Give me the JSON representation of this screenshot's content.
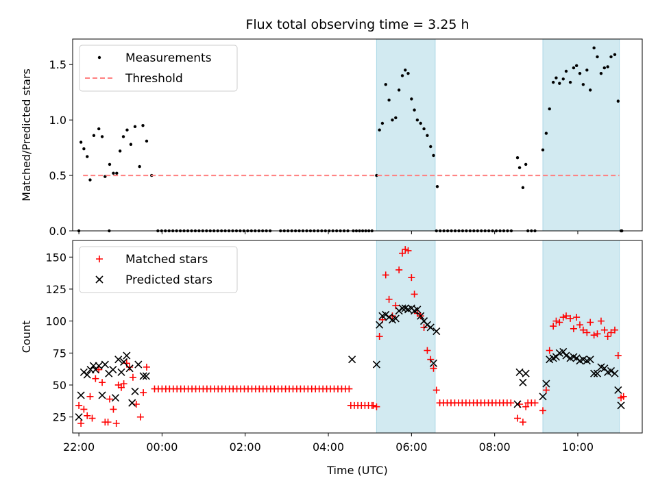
{
  "chart_data": [
    {
      "type": "scatter",
      "title": "Flux total observing time = 3.25 h",
      "ylabel": "Matched/Predicted stars",
      "xlabel": "",
      "xlim": [
        -2.15,
        11.55
      ],
      "ylim": [
        0,
        1.73
      ],
      "x_ticks": [
        "22:00",
        "00:00",
        "02:00",
        "04:00",
        "06:00",
        "08:00",
        "10:00"
      ],
      "y_ticks": [
        "0.0",
        "0.5",
        "1.0",
        "1.5"
      ],
      "legend": "top-left",
      "grid": false,
      "shaded_regions": [
        [
          5.16,
          6.57
        ],
        [
          9.16,
          11.0
        ]
      ],
      "series": [
        {
          "name": "Measurements",
          "style": "dot",
          "color": "#000000",
          "x": [
            -1.95,
            -1.88,
            -1.8,
            -1.73,
            -1.64,
            -1.52,
            -1.44,
            -1.37,
            -1.26,
            -1.17,
            -1.09,
            -1.01,
            -0.93,
            -0.84,
            -0.75,
            -0.65,
            -0.54,
            -0.46,
            -0.37,
            -0.25,
            5.16,
            5.23,
            5.3,
            5.38,
            5.46,
            5.54,
            5.62,
            5.7,
            5.78,
            5.85,
            5.92,
            6.0,
            6.07,
            6.14,
            6.22,
            6.3,
            6.38,
            6.46,
            6.53,
            6.62,
            8.55,
            8.6,
            8.68,
            8.75,
            9.16,
            9.24,
            9.32,
            9.41,
            9.48,
            9.56,
            9.65,
            9.72,
            9.82,
            9.9,
            9.97,
            10.05,
            10.13,
            10.22,
            10.3,
            10.39,
            10.47,
            10.56,
            10.64,
            10.72,
            10.8,
            10.89,
            10.97,
            11.04
          ],
          "y": [
            0.8,
            0.74,
            0.67,
            0.46,
            0.86,
            0.92,
            0.85,
            0.49,
            0.6,
            0.52,
            0.52,
            0.72,
            0.85,
            0.91,
            0.78,
            0.94,
            0.58,
            0.95,
            0.81,
            0.5,
            0.5,
            0.91,
            0.97,
            1.32,
            1.18,
            1.0,
            1.02,
            1.27,
            1.4,
            1.45,
            1.42,
            1.19,
            1.09,
            1.0,
            0.97,
            0.92,
            0.86,
            0.76,
            0.68,
            0.4,
            0.66,
            0.57,
            0.39,
            0.6,
            0.73,
            0.88,
            1.1,
            1.34,
            1.38,
            1.33,
            1.37,
            1.44,
            1.34,
            1.47,
            1.49,
            1.42,
            1.32,
            1.45,
            1.27,
            1.65,
            1.57,
            1.42,
            1.47,
            1.48,
            1.57,
            1.59,
            1.17,
            0.0
          ],
          "zero_points": {
            "ranges": [
              [
                -0.1,
                2.6,
                0.09
              ],
              [
                2.85,
                4.5,
                0.09
              ],
              [
                4.6,
                5.1,
                0.075
              ],
              [
                6.6,
                8.45,
                0.09
              ],
              [
                8.8,
                9.05,
                0.085
              ]
            ],
            "extra": [
              -2.0,
              -1.27,
              11.06
            ]
          }
        },
        {
          "name": "Threshold",
          "style": "dashed-line",
          "color": "#ff7f7f",
          "x": [
            -1.9,
            11.0
          ],
          "y": [
            0.5,
            0.5
          ]
        }
      ]
    },
    {
      "type": "scatter",
      "title": "",
      "ylabel": "Count",
      "xlabel": "Time (UTC)",
      "xlim": [
        -2.15,
        11.55
      ],
      "ylim": [
        12.5,
        163
      ],
      "x_ticks": [
        "22:00",
        "00:00",
        "02:00",
        "04:00",
        "06:00",
        "08:00",
        "10:00"
      ],
      "y_ticks": [
        "25",
        "50",
        "75",
        "100",
        "125",
        "150"
      ],
      "legend": "top-left",
      "grid": false,
      "shaded_regions": [
        [
          5.16,
          6.57
        ],
        [
          9.16,
          11.0
        ]
      ],
      "series": [
        {
          "name": "Matched stars",
          "style": "plus",
          "color": "#ff0000",
          "x": [
            -2.0,
            -1.95,
            -1.88,
            -1.8,
            -1.73,
            -1.68,
            -1.6,
            -1.52,
            -1.44,
            -1.37,
            -1.3,
            -1.26,
            -1.17,
            -1.1,
            -1.05,
            -0.98,
            -0.92,
            -0.85,
            -0.78,
            -0.7,
            -0.62,
            -0.52,
            -0.45,
            -0.37,
            5.08,
            5.16,
            5.23,
            5.3,
            5.38,
            5.46,
            5.54,
            5.62,
            5.7,
            5.78,
            5.85,
            5.92,
            6.0,
            6.07,
            6.14,
            6.22,
            6.3,
            6.38,
            6.46,
            6.53,
            6.6,
            8.55,
            8.6,
            8.68,
            8.75,
            9.16,
            9.24,
            9.32,
            9.41,
            9.48,
            9.56,
            9.65,
            9.72,
            9.82,
            9.9,
            9.97,
            10.05,
            10.13,
            10.22,
            10.3,
            10.39,
            10.47,
            10.56,
            10.64,
            10.72,
            10.8,
            10.89,
            10.97,
            11.04,
            11.1
          ],
          "y": [
            34,
            20,
            31,
            26,
            41,
            24,
            55,
            62,
            52,
            21,
            21,
            39,
            31,
            20,
            50,
            48,
            51,
            67,
            64,
            56,
            35,
            25,
            44,
            64,
            34,
            33,
            88,
            101,
            136,
            117,
            104,
            112,
            140,
            153,
            156,
            155,
            134,
            121,
            106,
            104,
            95,
            77,
            70,
            63,
            46,
            24,
            35,
            21,
            33,
            30,
            46,
            77,
            96,
            100,
            99,
            103,
            104,
            102,
            94,
            103,
            97,
            93,
            91,
            99,
            89,
            90,
            100,
            93,
            88,
            91,
            93,
            73,
            40,
            41
          ],
          "constant_runs": [
            {
              "x_range": [
                -0.18,
                4.52,
                0.09
              ],
              "y": 47
            },
            {
              "x_range": [
                4.54,
                5.12,
                0.085
              ],
              "y": 34
            },
            {
              "x_range": [
                6.68,
                8.45,
                0.09
              ],
              "y": 36
            },
            {
              "x_range": [
                8.8,
                9.05,
                0.085
              ],
              "y": 36
            }
          ]
        },
        {
          "name": "Predicted stars",
          "style": "x",
          "color": "#000000",
          "x": [
            -2.0,
            -1.95,
            -1.88,
            -1.8,
            -1.72,
            -1.65,
            -1.6,
            -1.52,
            -1.44,
            -1.37,
            -1.28,
            -1.18,
            -1.12,
            -1.05,
            -0.98,
            -0.92,
            -0.85,
            -0.78,
            -0.72,
            -0.65,
            -0.57,
            -0.45,
            -0.38,
            4.57,
            5.16,
            5.23,
            5.3,
            5.38,
            5.46,
            5.54,
            5.62,
            5.7,
            5.78,
            5.85,
            5.92,
            6.0,
            6.07,
            6.14,
            6.22,
            6.3,
            6.38,
            6.46,
            6.53,
            6.6,
            8.55,
            8.6,
            8.68,
            8.75,
            9.16,
            9.24,
            9.32,
            9.41,
            9.48,
            9.56,
            9.65,
            9.72,
            9.82,
            9.9,
            9.97,
            10.05,
            10.13,
            10.22,
            10.3,
            10.39,
            10.47,
            10.56,
            10.64,
            10.72,
            10.8,
            10.89,
            10.97,
            11.04
          ],
          "y": [
            25,
            42,
            60,
            58,
            62,
            65,
            62,
            65,
            42,
            66,
            59,
            62,
            40,
            70,
            60,
            68,
            73,
            63,
            36,
            45,
            66,
            57,
            57,
            70,
            66,
            97,
            104,
            105,
            103,
            101,
            102,
            108,
            110,
            110,
            109,
            110,
            108,
            109,
            104,
            100,
            97,
            95,
            67,
            92,
            35,
            60,
            52,
            59,
            41,
            51,
            70,
            71,
            72,
            75,
            76,
            73,
            71,
            72,
            71,
            69,
            70,
            69,
            70,
            59,
            59,
            64,
            63,
            60,
            61,
            59,
            46,
            34
          ]
        }
      ]
    }
  ]
}
